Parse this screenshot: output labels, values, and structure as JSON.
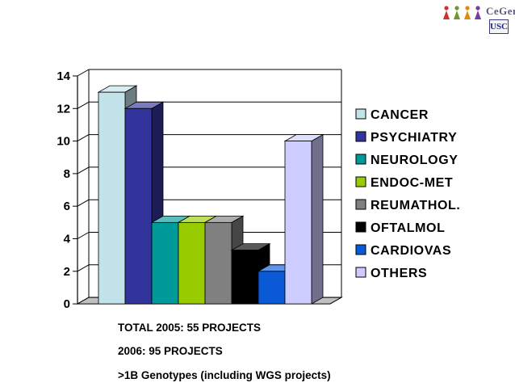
{
  "logo": {
    "brand": "CeGen",
    "usc": "USC"
  },
  "chart_data": {
    "type": "bar",
    "style": "3d-clustered",
    "categories": [
      "CANCER",
      "PSYCHIATRY",
      "NEUROLOGY",
      "ENDOC-MET",
      "REUMATHOL.",
      "OFTALMOL",
      "CARDIOVAS",
      "OTHERS"
    ],
    "values": [
      13,
      12,
      5,
      5,
      5,
      3.3,
      2,
      10
    ],
    "colors": [
      "#c3e3ea",
      "#33339c",
      "#009a9a",
      "#99cc00",
      "#808080",
      "#000000",
      "#0a5ad8",
      "#ccccff"
    ],
    "ylim": [
      0,
      14
    ],
    "yticks": [
      "0",
      "2",
      "4",
      "6",
      "8",
      "10",
      "12",
      "14"
    ],
    "grid": true,
    "legend_position": "right"
  },
  "footer": {
    "line1": "TOTAL 2005: 55 PROJECTS",
    "line2": "2006: 95 PROJECTS",
    "line3": ">1B Genotypes (including  WGS projects)"
  }
}
